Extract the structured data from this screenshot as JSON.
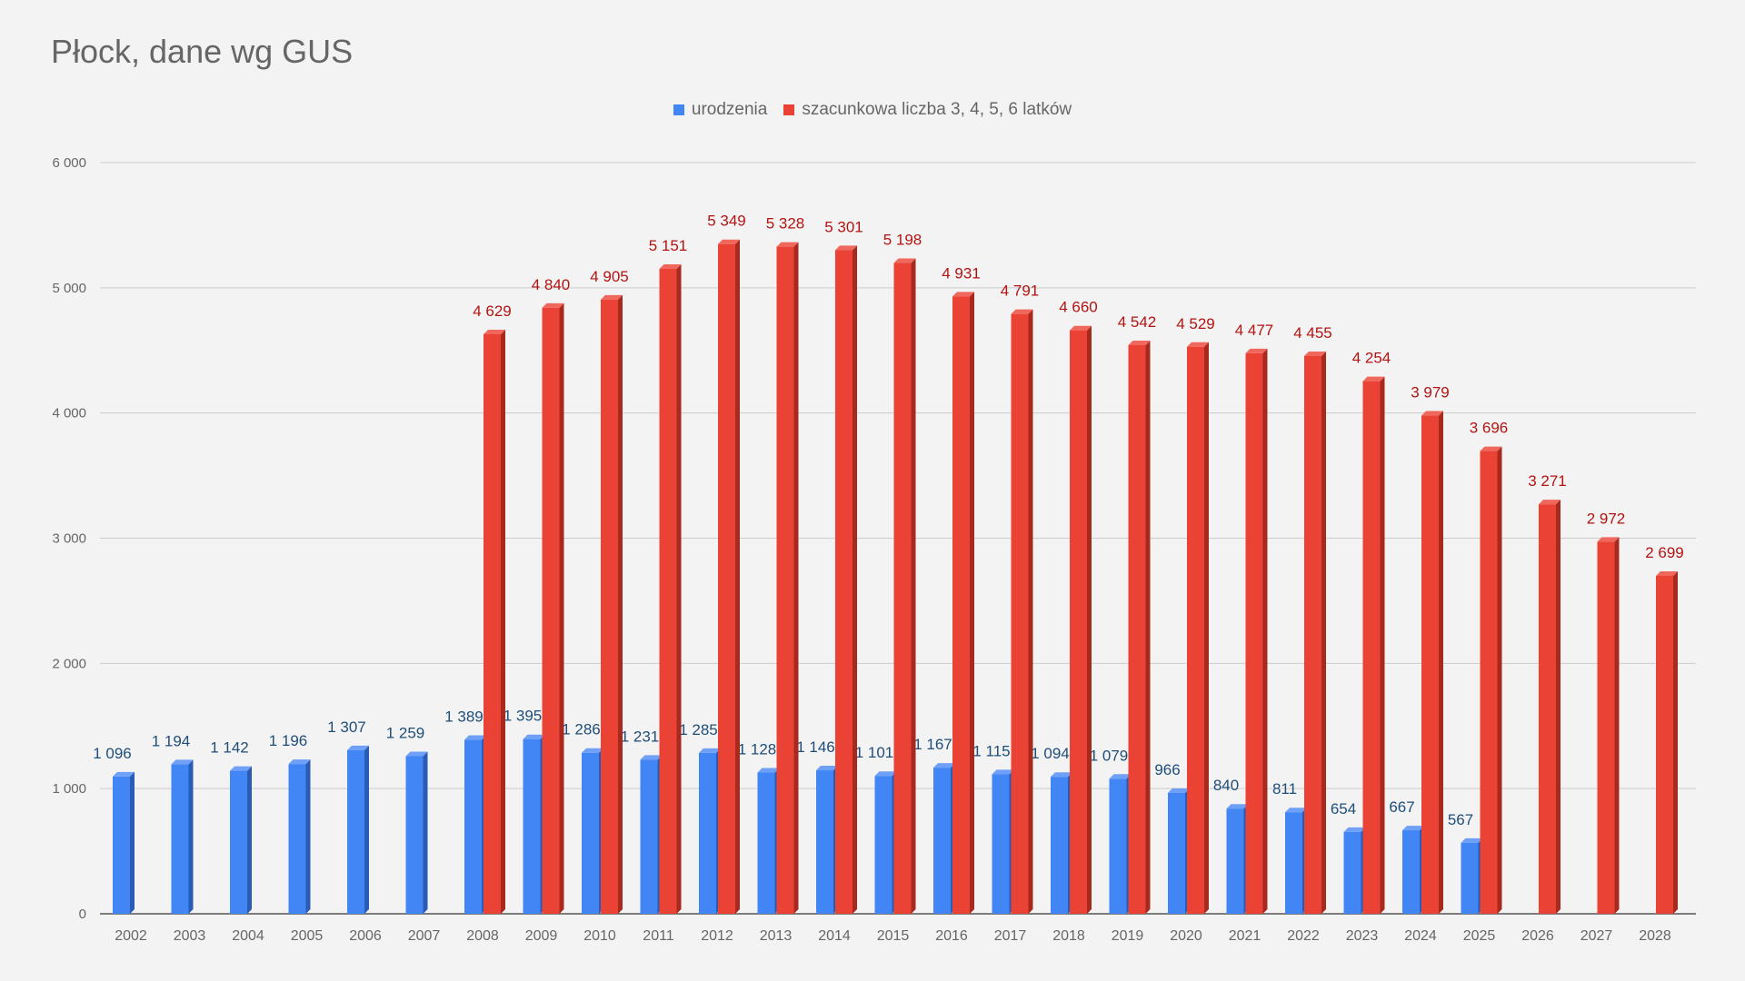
{
  "chart_data": {
    "type": "bar",
    "title": "Płock, dane wg GUS",
    "xlabel": "",
    "ylabel": "",
    "ylim": [
      0,
      6000
    ],
    "yticks": [
      0,
      1000,
      2000,
      3000,
      4000,
      5000,
      6000
    ],
    "ytick_labels": [
      "0",
      "1 000",
      "2 000",
      "3 000",
      "4 000",
      "5 000",
      "6 000"
    ],
    "grid": true,
    "legend_position": "top-center",
    "categories": [
      "2002",
      "2003",
      "2004",
      "2005",
      "2006",
      "2007",
      "2008",
      "2009",
      "2010",
      "2011",
      "2012",
      "2013",
      "2014",
      "2015",
      "2016",
      "2017",
      "2018",
      "2019",
      "2020",
      "2021",
      "2022",
      "2023",
      "2024",
      "2025",
      "2026",
      "2027",
      "2028"
    ],
    "series": [
      {
        "name": "urodzenia",
        "color": "#4285f4",
        "side_color": "#2a5bb5",
        "top_color": "#6fa0f7",
        "label_color": "#1f4e79",
        "values": [
          1096,
          1194,
          1142,
          1196,
          1307,
          1259,
          1389,
          1395,
          1286,
          1231,
          1285,
          1128,
          1146,
          1101,
          1167,
          1115,
          1094,
          1079,
          966,
          840,
          811,
          654,
          667,
          567,
          null,
          null,
          null
        ],
        "labels": [
          "1 096",
          "1 194",
          "1 142",
          "1 196",
          "1 307",
          "1 259",
          "1 389",
          "1 395",
          "1 286",
          "1 231",
          "1 285",
          "1 128",
          "1 146",
          "1 101",
          "1 167",
          "1 115",
          "1 094",
          "1 079",
          "966",
          "840",
          "811",
          "654",
          "667",
          "567",
          null,
          null,
          null
        ]
      },
      {
        "name": "szacunkowa liczba 3, 4, 5, 6 latków",
        "color": "#ea4335",
        "side_color": "#a82a1f",
        "top_color": "#f0675b",
        "label_color": "#b31412",
        "values": [
          null,
          null,
          null,
          null,
          null,
          null,
          4629,
          4840,
          4905,
          5151,
          5349,
          5328,
          5301,
          5198,
          4931,
          4791,
          4660,
          4542,
          4529,
          4477,
          4455,
          4254,
          3979,
          3696,
          3271,
          2972,
          2699
        ],
        "labels": [
          null,
          null,
          null,
          null,
          null,
          null,
          "4 629",
          "4 840",
          "4 905",
          "5 151",
          "5 349",
          "5 328",
          "5 301",
          "5 198",
          "4 931",
          "4 791",
          "4 660",
          "4 542",
          "4 529",
          "4 477",
          "4 455",
          "4 254",
          "3 979",
          "3 696",
          "3 271",
          "2 972",
          "2 699"
        ]
      }
    ]
  }
}
